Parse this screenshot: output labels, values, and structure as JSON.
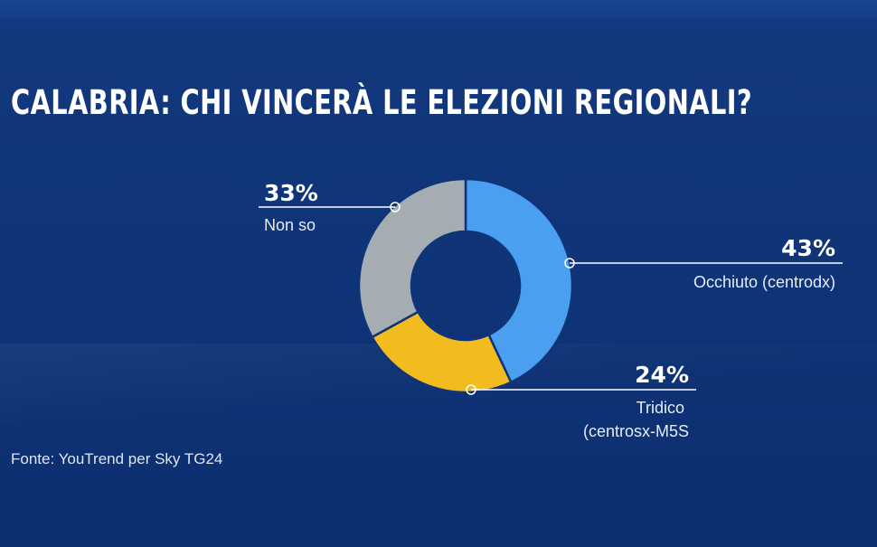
{
  "title": "CALABRIA: CHI VINCERÀ LE ELEZIONI REGIONALI?",
  "source": "Fonte: YouTrend per Sky TG24",
  "chart_data": {
    "type": "pie",
    "donut": true,
    "slices": [
      {
        "pct_label": "43%",
        "label_lines": [
          "Occhiuto (centrodx)"
        ],
        "value": 43,
        "color": "#4a9ff0"
      },
      {
        "pct_label": "24%",
        "label_lines": [
          "Tridico",
          "(centrosx-M5S"
        ],
        "value": 24,
        "color": "#f2bb1e"
      },
      {
        "pct_label": "33%",
        "label_lines": [
          "Non so"
        ],
        "value": 33,
        "color": "#a6adb2"
      }
    ]
  }
}
